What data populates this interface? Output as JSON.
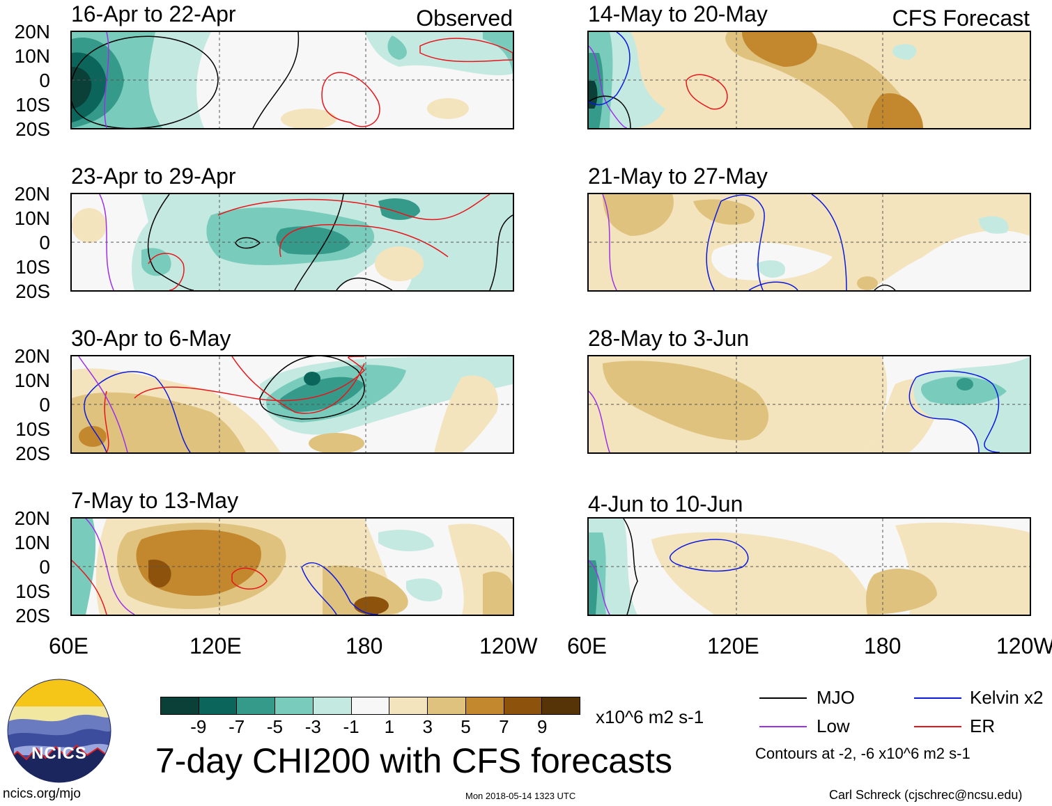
{
  "left_panels": [
    {
      "title": "16-Apr to 22-Apr",
      "corner": "Observed"
    },
    {
      "title": "23-Apr to 29-Apr",
      "corner": ""
    },
    {
      "title": "30-Apr to 6-May",
      "corner": ""
    },
    {
      "title": "7-May to 13-May",
      "corner": ""
    }
  ],
  "right_panels": [
    {
      "title": "14-May to 20-May",
      "corner": "CFS Forecast"
    },
    {
      "title": "21-May to 27-May",
      "corner": ""
    },
    {
      "title": "28-May to 3-Jun",
      "corner": ""
    },
    {
      "title": "4-Jun to 10-Jun",
      "corner": ""
    }
  ],
  "lat_labels": [
    "20N",
    "10N",
    "0",
    "10S",
    "20S"
  ],
  "lon_labels": [
    "60E",
    "120E",
    "180",
    "120W"
  ],
  "colorbar": {
    "colors": [
      "#0b4038",
      "#0b655a",
      "#369a8b",
      "#79cbbc",
      "#c4e9e1",
      "#f7f7f7",
      "#f4e4bd",
      "#dfc27e",
      "#c3872e",
      "#8d530d",
      "#563408"
    ],
    "labels": [
      "-9",
      "-7",
      "-5",
      "-3",
      "-1",
      "1",
      "3",
      "5",
      "7",
      "9"
    ],
    "units": "x10^6 m2 s-1"
  },
  "title": "7-day CHI200 with CFS forecasts",
  "legend": {
    "items": [
      {
        "label": "MJO",
        "color": "#000000"
      },
      {
        "label": "Kelvin x2",
        "color": "#0a17e0"
      },
      {
        "label": "Low",
        "color": "#9b30e8"
      },
      {
        "label": "ER",
        "color": "#e8141a"
      }
    ],
    "note": "Contours at -2, -6 x10^6 m2 s-1"
  },
  "logo_text": "NCICS",
  "footer": {
    "url": "ncics.org/mjo",
    "timestamp": "Mon 2018-05-14 1323 UTC",
    "author": "Carl Schreck (cjschrec@ncsu.edu)"
  }
}
